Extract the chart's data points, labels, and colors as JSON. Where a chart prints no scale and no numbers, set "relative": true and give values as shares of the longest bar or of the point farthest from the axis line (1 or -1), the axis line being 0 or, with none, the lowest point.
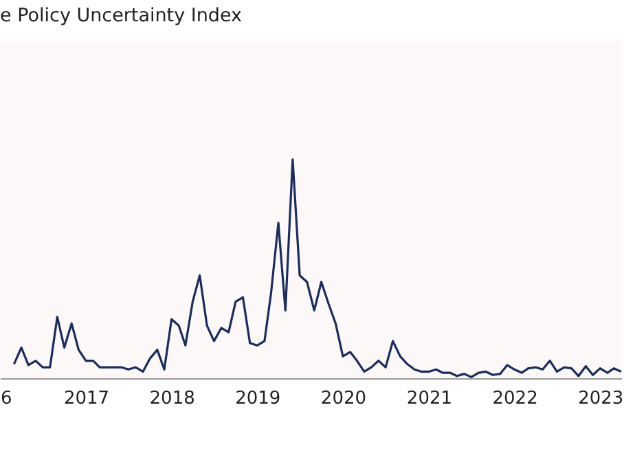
{
  "chart_data": {
    "type": "line",
    "title": "e Policy Uncertainty Index",
    "relative": true,
    "xlim": [
      "2016-01",
      "2023-04"
    ],
    "xticks": [
      {
        "value": "2016-01",
        "label": "6"
      },
      {
        "value": "2017-01",
        "label": "2017"
      },
      {
        "value": "2018-01",
        "label": "2018"
      },
      {
        "value": "2019-01",
        "label": "2019"
      },
      {
        "value": "2020-01",
        "label": "2020"
      },
      {
        "value": "2021-01",
        "label": "2021"
      },
      {
        "value": "2022-01",
        "label": "2022"
      },
      {
        "value": "2023-01",
        "label": "2023"
      }
    ],
    "grid": false,
    "x": [
      "2016-03",
      "2016-04",
      "2016-05",
      "2016-06",
      "2016-07",
      "2016-08",
      "2016-09",
      "2016-10",
      "2016-11",
      "2016-12",
      "2017-01",
      "2017-02",
      "2017-03",
      "2017-04",
      "2017-05",
      "2017-06",
      "2017-07",
      "2017-08",
      "2017-09",
      "2017-10",
      "2017-11",
      "2017-12",
      "2018-01",
      "2018-02",
      "2018-03",
      "2018-04",
      "2018-05",
      "2018-06",
      "2018-07",
      "2018-08",
      "2018-09",
      "2018-10",
      "2018-11",
      "2018-12",
      "2019-01",
      "2019-02",
      "2019-03",
      "2019-04",
      "2019-05",
      "2019-06",
      "2019-07",
      "2019-08",
      "2019-09",
      "2019-10",
      "2019-11",
      "2019-12",
      "2020-01",
      "2020-02",
      "2020-03",
      "2020-04",
      "2020-05",
      "2020-06",
      "2020-07",
      "2020-08",
      "2020-09",
      "2020-10",
      "2020-11",
      "2020-12",
      "2021-01",
      "2021-02",
      "2021-03",
      "2021-04",
      "2021-05",
      "2021-06",
      "2021-07",
      "2021-08",
      "2021-09",
      "2021-10",
      "2021-11",
      "2021-12",
      "2022-01",
      "2022-02",
      "2022-03",
      "2022-04",
      "2022-05",
      "2022-06",
      "2022-07",
      "2022-08",
      "2022-09",
      "2022-10",
      "2022-11",
      "2022-12",
      "2023-01",
      "2023-02",
      "2023-03",
      "2023-04"
    ],
    "series": [
      {
        "color": "#1b2c5e",
        "values": [
          0.065,
          0.14,
          0.06,
          0.08,
          0.05,
          0.05,
          0.28,
          0.14,
          0.25,
          0.13,
          0.08,
          0.08,
          0.05,
          0.05,
          0.05,
          0.05,
          0.04,
          0.05,
          0.03,
          0.09,
          0.13,
          0.04,
          0.27,
          0.24,
          0.15,
          0.35,
          0.47,
          0.24,
          0.17,
          0.23,
          0.21,
          0.35,
          0.37,
          0.16,
          0.15,
          0.17,
          0.39,
          0.71,
          0.31,
          1.0,
          0.47,
          0.44,
          0.31,
          0.44,
          0.34,
          0.25,
          0.1,
          0.12,
          0.08,
          0.03,
          0.05,
          0.08,
          0.05,
          0.17,
          0.1,
          0.065,
          0.04,
          0.03,
          0.03,
          0.04,
          0.025,
          0.025,
          0.01,
          0.02,
          0.005,
          0.025,
          0.03,
          0.015,
          0.02,
          0.06,
          0.04,
          0.025,
          0.045,
          0.05,
          0.04,
          0.08,
          0.03,
          0.05,
          0.045,
          0.01,
          0.055,
          0.015,
          0.045,
          0.025,
          0.045,
          0.03
        ]
      }
    ]
  }
}
